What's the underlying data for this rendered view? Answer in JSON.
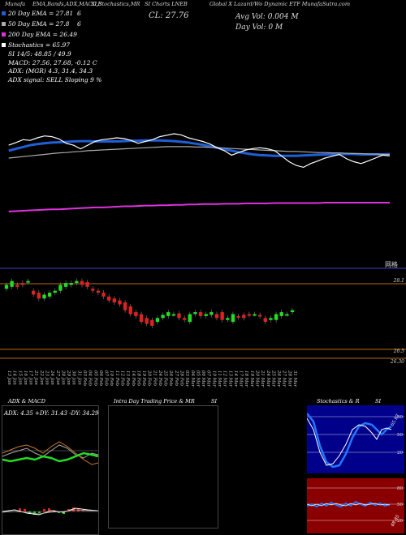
{
  "header": {
    "a": "Munafa",
    "b": "EMA,Bands,ADX,MACD,B",
    "c": "SI,Stochastics,MR",
    "d": "SI Charts LNEB",
    "e": "Global X Lazard/Wo Dynamic ETF MunafaSutra.com"
  },
  "legend": [
    {
      "label": "20 Day EMA = 27.81",
      "color": "#1f5fd6"
    },
    {
      "label": "50 Day EMA = 27.8",
      "color": "#aaaaaa"
    },
    {
      "label": "200 Day EMA = 26.49",
      "color": "#dd33dd"
    },
    {
      "label": "Stochastics = 65.97",
      "color": "#ffffff"
    }
  ],
  "legend_extra": {
    "n1": "6",
    "n2": "6"
  },
  "close_label": "CL: 27.76",
  "avg_vol": "Avg Vol: 0.004  M",
  "day_vol": "Day Vol: 0  M",
  "si_text": "SI 14/5: 48.85 / 49.9",
  "macd_text": "MACD: 27.56, 27.68, -0.12  C",
  "adx_text": "ADX:                                (MGR) 4.3, 31.4, 34.3",
  "adx_signal": "ADX  signal: SELL  Sloping 9 %",
  "price_axis": {
    "p1": "28.1",
    "p2": "26.5",
    "p3": "26.30"
  },
  "watermark": "网格",
  "dates": [
    "13 Jan",
    "14 Jan",
    "15 Jan",
    "16 Jan",
    "17 Jan",
    "21 Jan",
    "22 Jan",
    "23 Jan",
    "24 Jan",
    "27 Jan",
    "28 Jan",
    "29 Jan",
    "30 Jan",
    "31 Jan",
    "03 Feb",
    "04 Feb",
    "05 Feb",
    "06 Feb",
    "07 Feb",
    "10 Feb",
    "11 Feb",
    "12 Feb",
    "13 Feb",
    "14 Feb",
    "18 Feb",
    "19 Feb",
    "20 Feb",
    "21 Feb",
    "24 Feb",
    "25 Feb",
    "26 Feb",
    "27 Feb",
    "28 Feb",
    "03 Mar",
    "04 Mar",
    "05 Mar",
    "06 Mar",
    "07 Mar",
    "10 Mar",
    "11 Mar",
    "12 Mar",
    "13 Mar",
    "14 Mar",
    "17 Mar",
    "18 Mar",
    "19 Mar",
    "20 Mar",
    "21 Mar",
    "24 Mar",
    "25 Mar",
    "26 Mar",
    "27 Mar",
    "28 Mar",
    "31 Mar"
  ],
  "panels": {
    "adx_title": "ADX  & MACD",
    "adx_values": "ADX: 4.35  +DY: 31.43  -DY: 34.29",
    "intra_title": "Intra  Day Trading Price  & MR",
    "intra_si": "SI",
    "stoch_title": "Stochastics  & R",
    "stoch_si": "SI",
    "stoch_ticks": [
      "80",
      "50",
      "20"
    ],
    "si_ticks": [
      "80",
      "50",
      "20"
    ],
    "stoch_label": "65.97",
    "si_label": "48.85"
  },
  "chart_data": [
    {
      "type": "line",
      "title": "",
      "series": [
        {
          "name": "20 Day EMA",
          "color": "#1f5fd6",
          "values": [
            27.9,
            27.95,
            28.0,
            28.05,
            28.08,
            28.1,
            28.12,
            28.13,
            28.14,
            28.15,
            28.16,
            28.16,
            28.15,
            28.15,
            28.15,
            28.15,
            28.16,
            28.17,
            28.17,
            28.18,
            28.18,
            28.18,
            28.17,
            28.16,
            28.14,
            28.12,
            28.09,
            28.06,
            28.02,
            27.98,
            27.94,
            27.9,
            27.86,
            27.83,
            27.8,
            27.78,
            27.77,
            27.76,
            27.76,
            27.76,
            27.76,
            27.77,
            27.78,
            27.79,
            27.8,
            27.8,
            27.81,
            27.81,
            27.81,
            27.8,
            27.8,
            27.8,
            27.8,
            27.81
          ]
        },
        {
          "name": "50 Day EMA",
          "color": "#aaaaaa",
          "values": [
            27.7,
            27.72,
            27.74,
            27.76,
            27.78,
            27.8,
            27.82,
            27.84,
            27.85,
            27.87,
            27.88,
            27.9,
            27.91,
            27.92,
            27.93,
            27.94,
            27.95,
            27.96,
            27.97,
            27.98,
            27.99,
            28.0,
            28.01,
            28.01,
            28.01,
            28.01,
            28.0,
            28.0,
            27.99,
            27.98,
            27.97,
            27.96,
            27.95,
            27.94,
            27.93,
            27.92,
            27.91,
            27.9,
            27.89,
            27.88,
            27.88,
            27.87,
            27.86,
            27.85,
            27.85,
            27.84,
            27.84,
            27.83,
            27.82,
            27.82,
            27.81,
            27.81,
            27.8,
            27.8
          ]
        },
        {
          "name": "200 Day EMA",
          "color": "#dd33dd",
          "values": [
            26.25,
            26.26,
            26.27,
            26.28,
            26.29,
            26.3,
            26.31,
            26.31,
            26.32,
            26.33,
            26.34,
            26.35,
            26.36,
            26.36,
            26.37,
            26.38,
            26.39,
            26.39,
            26.4,
            26.41,
            26.41,
            26.42,
            26.42,
            26.43,
            26.43,
            26.44,
            26.44,
            26.45,
            26.45,
            26.45,
            26.46,
            26.46,
            26.46,
            26.47,
            26.47,
            26.47,
            26.47,
            26.48,
            26.48,
            26.48,
            26.48,
            26.48,
            26.48,
            26.48,
            26.49,
            26.49,
            26.49,
            26.49,
            26.49,
            26.49,
            26.49,
            26.49,
            26.49,
            26.49
          ]
        },
        {
          "name": "Price",
          "color": "#ffffff",
          "values": [
            28.05,
            28.12,
            28.2,
            28.18,
            28.25,
            28.3,
            28.28,
            28.22,
            28.1,
            28.05,
            27.95,
            28.05,
            28.15,
            28.2,
            28.22,
            28.25,
            28.23,
            28.18,
            28.1,
            28.15,
            28.2,
            28.28,
            28.32,
            28.36,
            28.33,
            28.25,
            28.2,
            28.15,
            28.08,
            27.98,
            27.9,
            27.78,
            27.85,
            27.92,
            27.96,
            27.98,
            27.95,
            27.9,
            27.75,
            27.6,
            27.5,
            27.45,
            27.55,
            27.62,
            27.7,
            27.75,
            27.8,
            27.68,
            27.6,
            27.55,
            27.62,
            27.7,
            27.78,
            27.76
          ]
        }
      ],
      "ylim": [
        25.5,
        28.8
      ]
    },
    {
      "type": "bar",
      "title": "",
      "categories": [
        "13 Jan",
        "14 Jan",
        "15 Jan",
        "16 Jan",
        "17 Jan",
        "21 Jan",
        "22 Jan",
        "23 Jan",
        "24 Jan",
        "27 Jan",
        "28 Jan",
        "29 Jan",
        "30 Jan",
        "31 Jan",
        "03 Feb",
        "04 Feb",
        "05 Feb",
        "06 Feb",
        "07 Feb",
        "10 Feb",
        "11 Feb",
        "12 Feb",
        "13 Feb",
        "14 Feb",
        "18 Feb",
        "19 Feb",
        "20 Feb",
        "21 Feb",
        "24 Feb",
        "25 Feb",
        "26 Feb",
        "27 Feb",
        "28 Feb",
        "03 Mar",
        "04 Mar",
        "05 Mar",
        "06 Mar",
        "07 Mar",
        "10 Mar",
        "11 Mar",
        "12 Mar",
        "13 Mar",
        "14 Mar",
        "17 Mar",
        "18 Mar",
        "19 Mar",
        "20 Mar",
        "21 Mar",
        "24 Mar",
        "25 Mar",
        "26 Mar",
        "27 Mar",
        "28 Mar",
        "31 Mar"
      ],
      "series": [
        {
          "name": "open",
          "values": [
            27.95,
            28.0,
            28.05,
            28.1,
            28.12,
            27.9,
            27.85,
            27.7,
            27.75,
            27.85,
            27.9,
            28.0,
            28.05,
            28.1,
            28.15,
            28.12,
            27.95,
            27.9,
            27.85,
            27.75,
            27.7,
            27.65,
            27.6,
            27.5,
            27.35,
            27.3,
            27.2,
            27.15,
            27.1,
            27.2,
            27.25,
            27.3,
            27.32,
            27.2,
            27.1,
            27.3,
            27.35,
            27.25,
            27.28,
            27.3,
            27.35,
            27.15,
            27.1,
            27.25,
            27.28,
            27.3,
            27.3,
            27.28,
            27.2,
            27.15,
            27.15,
            27.25,
            27.3,
            27.35
          ]
        },
        {
          "name": "close",
          "values": [
            28.05,
            28.15,
            28.0,
            28.05,
            28.15,
            27.8,
            27.7,
            27.8,
            27.85,
            27.9,
            28.05,
            28.1,
            28.1,
            28.15,
            28.05,
            28.0,
            27.9,
            27.85,
            27.75,
            27.65,
            27.6,
            27.55,
            27.4,
            27.3,
            27.25,
            27.1,
            27.05,
            27.0,
            27.2,
            27.28,
            27.35,
            27.3,
            27.2,
            27.15,
            27.3,
            27.35,
            27.25,
            27.3,
            27.35,
            27.2,
            27.15,
            27.2,
            27.3,
            27.22,
            27.2,
            27.28,
            27.3,
            27.25,
            27.1,
            27.2,
            27.3,
            27.35,
            27.3,
            27.4
          ]
        }
      ],
      "ylim": [
        26.0,
        28.6
      ]
    }
  ]
}
